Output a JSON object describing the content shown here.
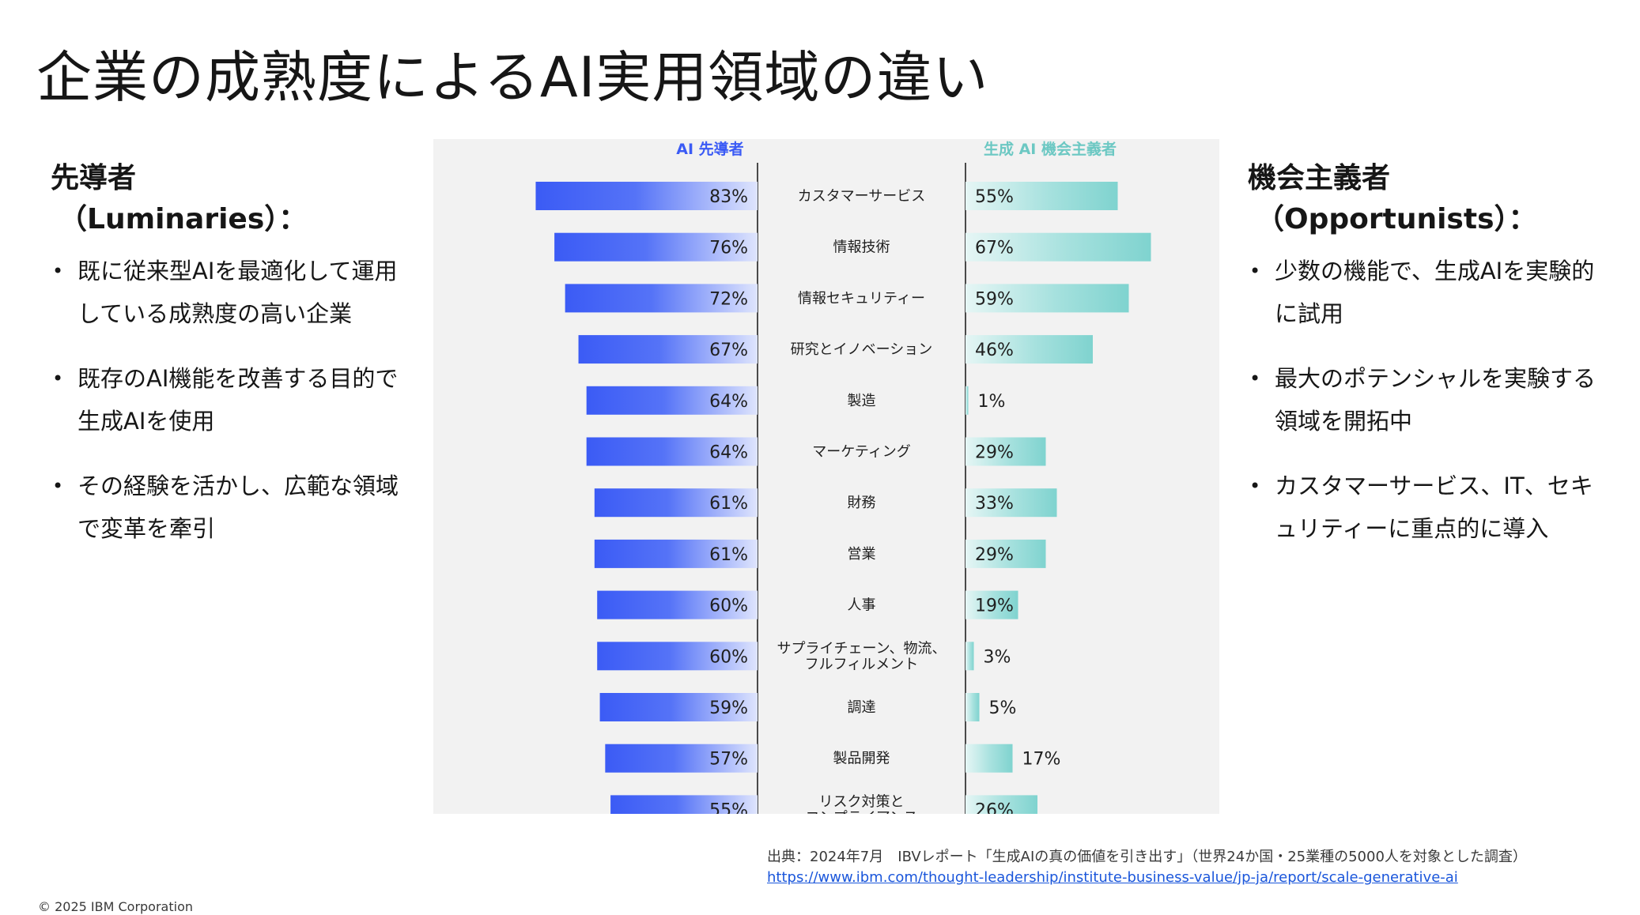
{
  "title": "企業の成熟度によるAI実用領域の違い",
  "left_panel": {
    "heading": "先導者",
    "subheading": "（Luminaries）：",
    "bullets": [
      "既に従来型AIを最適化して運用している成熟度の高い企業",
      "既存のAI機能を改善する目的で生成AIを使用",
      "その経験を活かし、広範な領域で変革を牽引"
    ]
  },
  "right_panel": {
    "heading": "機会主義者",
    "subheading": "（Opportunists）：",
    "bullets": [
      "少数の機能で、生成AIを実験的に試用",
      "最大のポテンシャルを実験する領域を開拓中",
      "カスタマーサービス、IT、セキュリティーに重点的に導入"
    ]
  },
  "chart_data": {
    "type": "bar",
    "orientation": "diverging-horizontal",
    "categories": [
      "カスタマーサービス",
      "情報技術",
      "情報セキュリティー",
      "研究とイノベーション",
      "製造",
      "マーケティング",
      "財務",
      "営業",
      "人事",
      "サプライチェーン、物流、フルフィルメント",
      "調達",
      "製品開発",
      "リスク対策とコンプライアンス"
    ],
    "series": [
      {
        "name": "AI 先導者",
        "side": "left",
        "color": "#3b5bf5",
        "values": [
          83,
          76,
          72,
          67,
          64,
          64,
          61,
          61,
          60,
          60,
          59,
          57,
          55
        ]
      },
      {
        "name": "生成 AI 機会主義者",
        "side": "right",
        "color": "#7fd3cf",
        "values": [
          55,
          67,
          59,
          46,
          1,
          29,
          33,
          29,
          19,
          3,
          5,
          17,
          26
        ]
      }
    ],
    "value_suffix": "%",
    "xlim": [
      0,
      100
    ]
  },
  "source": {
    "text": "出典：2024年7月　IBVレポート「生成AIの真の価値を引き出す」（世界24か国・25業種の5000人を対象とした調査）",
    "url": "https://www.ibm.com/thought-leadership/institute-business-value/jp-ja/report/scale-generative-ai"
  },
  "copyright": "© 2025 IBM Corporation"
}
